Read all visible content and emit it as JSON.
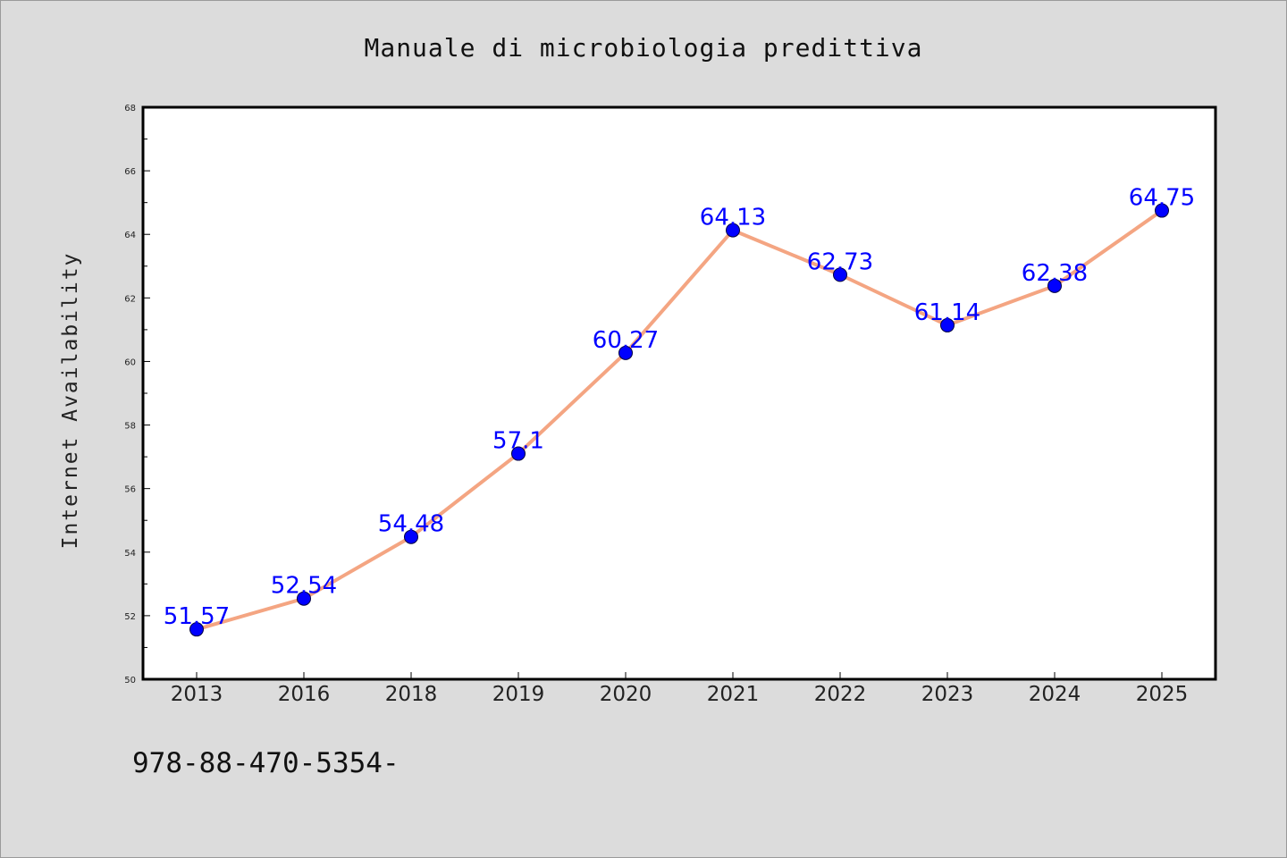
{
  "colors": {
    "background": "#dcdcdc",
    "plot_background": "#ffffff",
    "line": "#f4a582",
    "marker": "#0000ff",
    "data_label": "#0000ff",
    "axis": "#000000"
  },
  "footer": {
    "text": "978-88-470-5354-"
  },
  "chart_data": {
    "type": "line",
    "title": "Manuale di microbiologia predittiva",
    "xlabel": "",
    "ylabel": "Internet Availability",
    "categories": [
      "2013",
      "2016",
      "2018",
      "2019",
      "2020",
      "2021",
      "2022",
      "2023",
      "2024",
      "2025"
    ],
    "series": [
      {
        "values": [
          51.57,
          52.54,
          54.48,
          57.1,
          60.27,
          64.13,
          62.73,
          61.14,
          62.38,
          64.75
        ],
        "labels": [
          "51.57",
          "52.54",
          "54.48",
          "57.1",
          "60.27",
          "64.13",
          "62.73",
          "61.14",
          "62.38",
          "64.75"
        ]
      }
    ],
    "ylim": [
      50,
      68
    ],
    "yticks": [
      "50",
      "52",
      "54",
      "56",
      "58",
      "60",
      "62",
      "64",
      "66",
      "68"
    ],
    "grid": false,
    "legend": "none"
  }
}
